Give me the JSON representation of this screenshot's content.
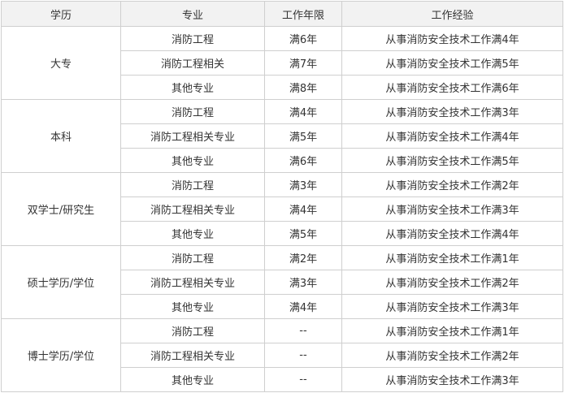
{
  "headers": [
    "学历",
    "专业",
    "工作年限",
    "工作经验"
  ],
  "groups": [
    {
      "degree": "大专",
      "rows": [
        [
          "消防工程",
          "满6年",
          "从事消防安全技术工作满4年"
        ],
        [
          "消防工程相关",
          "满7年",
          "从事消防安全技术工作满5年"
        ],
        [
          "其他专业",
          "满8年",
          "从事消防安全技术工作满6年"
        ]
      ]
    },
    {
      "degree": "本科",
      "rows": [
        [
          "消防工程",
          "满4年",
          "从事消防安全技术工作满3年"
        ],
        [
          "消防工程相关专业",
          "满5年",
          "从事消防安全技术工作满4年"
        ],
        [
          "其他专业",
          "满6年",
          "从事消防安全技术工作满5年"
        ]
      ]
    },
    {
      "degree": "双学士/研究生",
      "rows": [
        [
          "消防工程",
          "满3年",
          "从事消防安全技术工作满2年"
        ],
        [
          "消防工程相关专业",
          "满4年",
          "从事消防安全技术工作满3年"
        ],
        [
          "其他专业",
          "满5年",
          "从事消防安全技术工作满4年"
        ]
      ]
    },
    {
      "degree": "硕士学历/学位",
      "rows": [
        [
          "消防工程",
          "满2年",
          "从事消防安全技术工作满1年"
        ],
        [
          "消防工程相关专业",
          "满3年",
          "从事消防安全技术工作满2年"
        ],
        [
          "其他专业",
          "满4年",
          "从事消防安全技术工作满3年"
        ]
      ]
    },
    {
      "degree": "博士学历/学位",
      "rows": [
        [
          "消防工程",
          "--",
          "从事消防安全技术工作满1年"
        ],
        [
          "消防工程相关专业",
          "--",
          "从事消防安全技术工作满2年"
        ],
        [
          "其他专业",
          "--",
          "从事消防安全技术工作满3年"
        ]
      ]
    }
  ]
}
